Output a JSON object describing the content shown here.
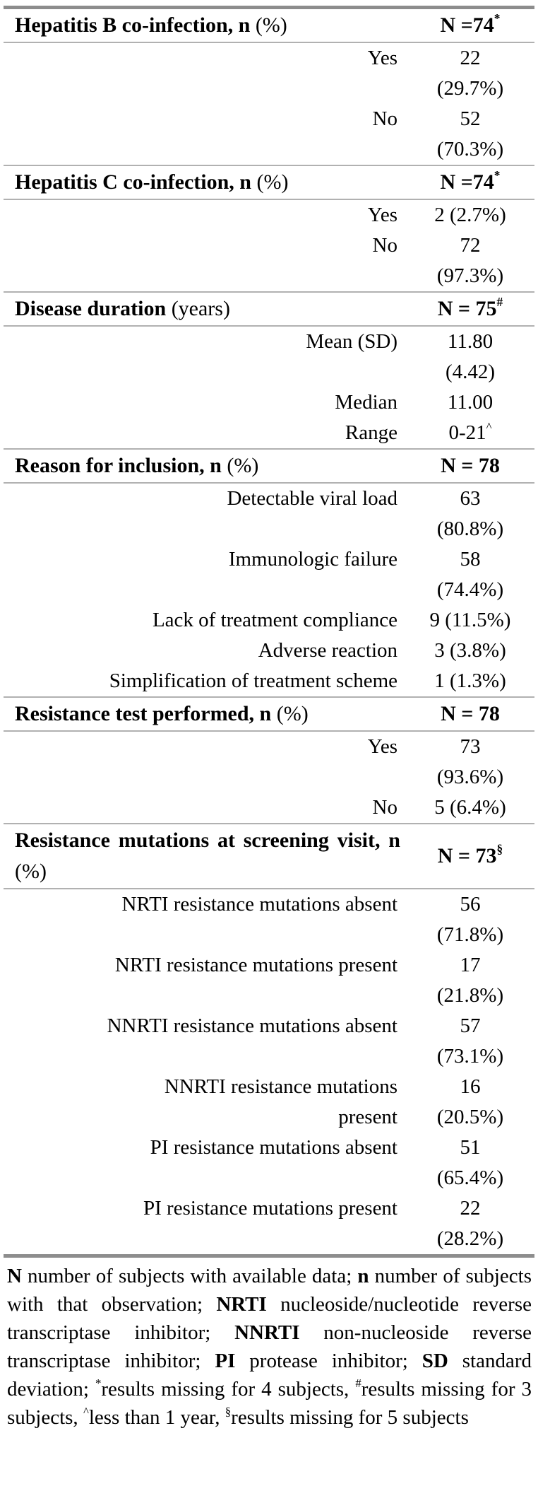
{
  "table": {
    "sections": [
      {
        "header": {
          "label": [
            {
              "t": "Hepatitis B co-infection, n ",
              "b": true
            },
            {
              "t": "(%)"
            }
          ],
          "n": [
            {
              "t": "N =74",
              "b": true
            },
            {
              "t": "*",
              "b": true,
              "sup": true
            }
          ]
        },
        "rows": [
          {
            "label": "Yes",
            "value": "22\n(29.7%)"
          },
          {
            "label": "No",
            "value": "52\n(70.3%)"
          }
        ]
      },
      {
        "header": {
          "label": [
            {
              "t": "Hepatitis C co-infection, n ",
              "b": true
            },
            {
              "t": "(%)"
            }
          ],
          "n": [
            {
              "t": "N =74",
              "b": true
            },
            {
              "t": "*",
              "b": true,
              "sup": true
            }
          ]
        },
        "rows": [
          {
            "label": "Yes",
            "value": "2 (2.7%)"
          },
          {
            "label": "No",
            "value": "72\n(97.3%)"
          }
        ]
      },
      {
        "header": {
          "label": [
            {
              "t": "Disease duration ",
              "b": true
            },
            {
              "t": "(years)"
            }
          ],
          "n": [
            {
              "t": "N = 75",
              "b": true
            },
            {
              "t": "#",
              "b": true,
              "sup": true
            }
          ]
        },
        "rows": [
          {
            "label": "Mean (SD)",
            "value": "11.80\n(4.42)"
          },
          {
            "label": "Median",
            "value": "11.00"
          },
          {
            "label": "Range",
            "value": [
              {
                "t": "0-21"
              },
              {
                "t": "^",
                "sup": true
              }
            ]
          }
        ]
      },
      {
        "header": {
          "label": [
            {
              "t": "Reason for inclusion, n ",
              "b": true
            },
            {
              "t": "(%)"
            }
          ],
          "n": [
            {
              "t": "N = 78",
              "b": true
            }
          ]
        },
        "rows": [
          {
            "label": "Detectable viral load",
            "value": "63\n(80.8%)"
          },
          {
            "label": "Immunologic failure",
            "value": "58\n(74.4%)"
          },
          {
            "label": "Lack of treatment compliance",
            "value": "9 (11.5%)"
          },
          {
            "label": "Adverse reaction",
            "value": "3 (3.8%)"
          },
          {
            "label": "Simplification of treatment scheme",
            "value": "1 (1.3%)"
          }
        ]
      },
      {
        "header": {
          "label": [
            {
              "t": "Resistance test performed, n ",
              "b": true
            },
            {
              "t": "(%)"
            }
          ],
          "n": [
            {
              "t": "N = 78",
              "b": true
            }
          ]
        },
        "rows": [
          {
            "label": "Yes",
            "value": "73\n(93.6%)"
          },
          {
            "label": "No",
            "value": "5 (6.4%)"
          }
        ]
      },
      {
        "header": {
          "label": [
            {
              "t": "Resistance mutations at screening visit, n ",
              "b": true
            },
            {
              "t": "(%)"
            }
          ],
          "n": [
            {
              "t": "N = 73",
              "b": true
            },
            {
              "t": "§",
              "b": true,
              "sup": true
            }
          ]
        },
        "rows": [
          {
            "label": "NRTI resistance mutations absent",
            "value": "56\n(71.8%)"
          },
          {
            "label": "NRTI resistance mutations present",
            "value": "17\n(21.8%)"
          },
          {
            "label": "NNRTI resistance mutations absent",
            "value": "57\n(73.1%)"
          },
          {
            "label": "NNRTI resistance mutations\npresent",
            "value": "16\n(20.5%)"
          },
          {
            "label": "PI resistance mutations absent",
            "value": "51\n(65.4%)"
          },
          {
            "label": "PI resistance mutations present",
            "value": "22\n(28.2%)"
          }
        ]
      }
    ],
    "footnote": [
      {
        "t": "N",
        "b": true
      },
      {
        "t": " number of subjects with available data; "
      },
      {
        "t": "n",
        "b": true
      },
      {
        "t": " number of subjects with that observation; "
      },
      {
        "t": "NRTI",
        "b": true
      },
      {
        "t": " nucleoside/nucleotide reverse transcriptase inhibitor; "
      },
      {
        "t": "NNRTI",
        "b": true
      },
      {
        "t": " non-nucleoside reverse transcriptase inhibitor; "
      },
      {
        "t": "PI",
        "b": true
      },
      {
        "t": " protease inhibitor; "
      },
      {
        "t": "SD",
        "b": true
      },
      {
        "t": " standard deviation; "
      },
      {
        "t": "*",
        "sup": true
      },
      {
        "t": "results missing for 4 subjects, "
      },
      {
        "t": "#",
        "sup": true
      },
      {
        "t": "results missing for 3 subjects, "
      },
      {
        "t": "^",
        "sup": true
      },
      {
        "t": "less than 1 year, "
      },
      {
        "t": "§",
        "sup": true
      },
      {
        "t": "results missing for 5 subjects"
      }
    ]
  }
}
